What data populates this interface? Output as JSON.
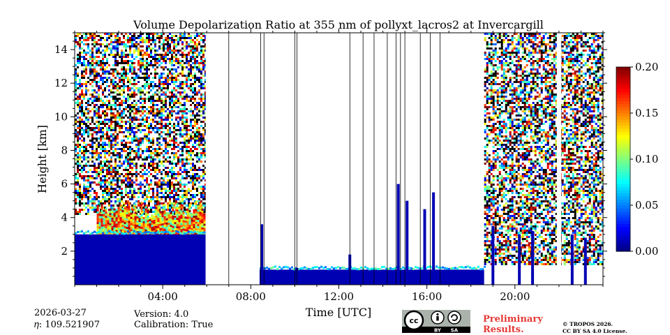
{
  "chart_data": {
    "type": "heatmap",
    "title": "Volume Depolarization Ratio at 355 nm of pollyxt_lacros2 at Invercargill",
    "xlabel": "Time [UTC]",
    "ylabel": "Height [km]",
    "x_unit": "hours UTC",
    "xlim": [
      0,
      24
    ],
    "ylim": [
      0,
      15
    ],
    "x_ticks": [
      {
        "value": 4,
        "label": "04:00"
      },
      {
        "value": 8,
        "label": "08:00"
      },
      {
        "value": 12,
        "label": "12:00"
      },
      {
        "value": 16,
        "label": "16:00"
      },
      {
        "value": 20,
        "label": "20:00"
      }
    ],
    "y_ticks": [
      {
        "value": 2,
        "label": "2"
      },
      {
        "value": 4,
        "label": "4"
      },
      {
        "value": 6,
        "label": "6"
      },
      {
        "value": 8,
        "label": "8"
      },
      {
        "value": 10,
        "label": "10"
      },
      {
        "value": 12,
        "label": "12"
      },
      {
        "value": 14,
        "label": "14"
      }
    ],
    "colorbar": {
      "range": [
        0.0,
        0.2
      ],
      "colormap": "jet",
      "ticks": [
        {
          "value": 0.0,
          "label": "0.00"
        },
        {
          "value": 0.05,
          "label": "0.05"
        },
        {
          "value": 0.1,
          "label": "0.10"
        },
        {
          "value": 0.15,
          "label": "0.15"
        },
        {
          "value": 0.2,
          "label": "0.20"
        }
      ]
    },
    "noise_regions": [
      {
        "name": "night-noise-early",
        "t_start": 0,
        "t_end": 5.95,
        "h_min": 4.2,
        "h_max": 15
      },
      {
        "name": "night-noise-late",
        "t_start": 18.6,
        "t_end": 24,
        "h_min": 1.2,
        "h_max": 15
      }
    ],
    "boundary_layer": [
      {
        "name": "aerosol-layer-morning",
        "t_start": 0,
        "t_end": 5.95,
        "h_top": 3.0,
        "value": 0.01
      },
      {
        "name": "aerosol-layer-midday",
        "t_start": 8.4,
        "t_end": 18.6,
        "h_top": 0.9,
        "value": 0.01
      }
    ],
    "dust_layer": {
      "t_start": 1.0,
      "t_end": 5.9,
      "h_min": 3.0,
      "h_max": 5.0,
      "value": 0.14
    },
    "no_data_gaps": [
      {
        "t_start": 5.95,
        "t_end": 6.8
      },
      {
        "t_start": 21.9,
        "t_end": 22.1
      }
    ],
    "signal_columns": [
      {
        "t": 8.5,
        "h_top": 3.6
      },
      {
        "t": 10.1,
        "h_top": 1.0
      },
      {
        "t": 12.5,
        "h_top": 1.8
      },
      {
        "t": 14.7,
        "h_top": 6.0
      },
      {
        "t": 15.1,
        "h_top": 5.0
      },
      {
        "t": 15.9,
        "h_top": 4.5
      },
      {
        "t": 16.3,
        "h_top": 5.5
      },
      {
        "t": 19.0,
        "h_top": 3.5
      },
      {
        "t": 20.2,
        "h_top": 3.0
      },
      {
        "t": 20.8,
        "h_top": 3.2
      },
      {
        "t": 22.6,
        "h_top": 3.0
      },
      {
        "t": 23.2,
        "h_top": 2.8
      }
    ],
    "profile_lines": [
      7.0,
      8.45,
      8.6,
      10.0,
      10.1,
      12.5,
      13.1,
      13.6,
      14.2,
      14.6,
      14.8,
      15.0,
      15.7,
      16.15,
      16.6
    ]
  },
  "footer": {
    "date": "2026-03-27",
    "eta": "𝜂: 109.521907",
    "version": "Version: 4.0",
    "calibration": "Calibration: True",
    "cc_mark": "cc",
    "cc_by": "BY",
    "cc_sa": "SA",
    "preliminary_line1": "Preliminary",
    "preliminary_line2": "Results.",
    "copyright": "© TROPOS 2026.",
    "license": "CC BY SA 4.0 License."
  }
}
